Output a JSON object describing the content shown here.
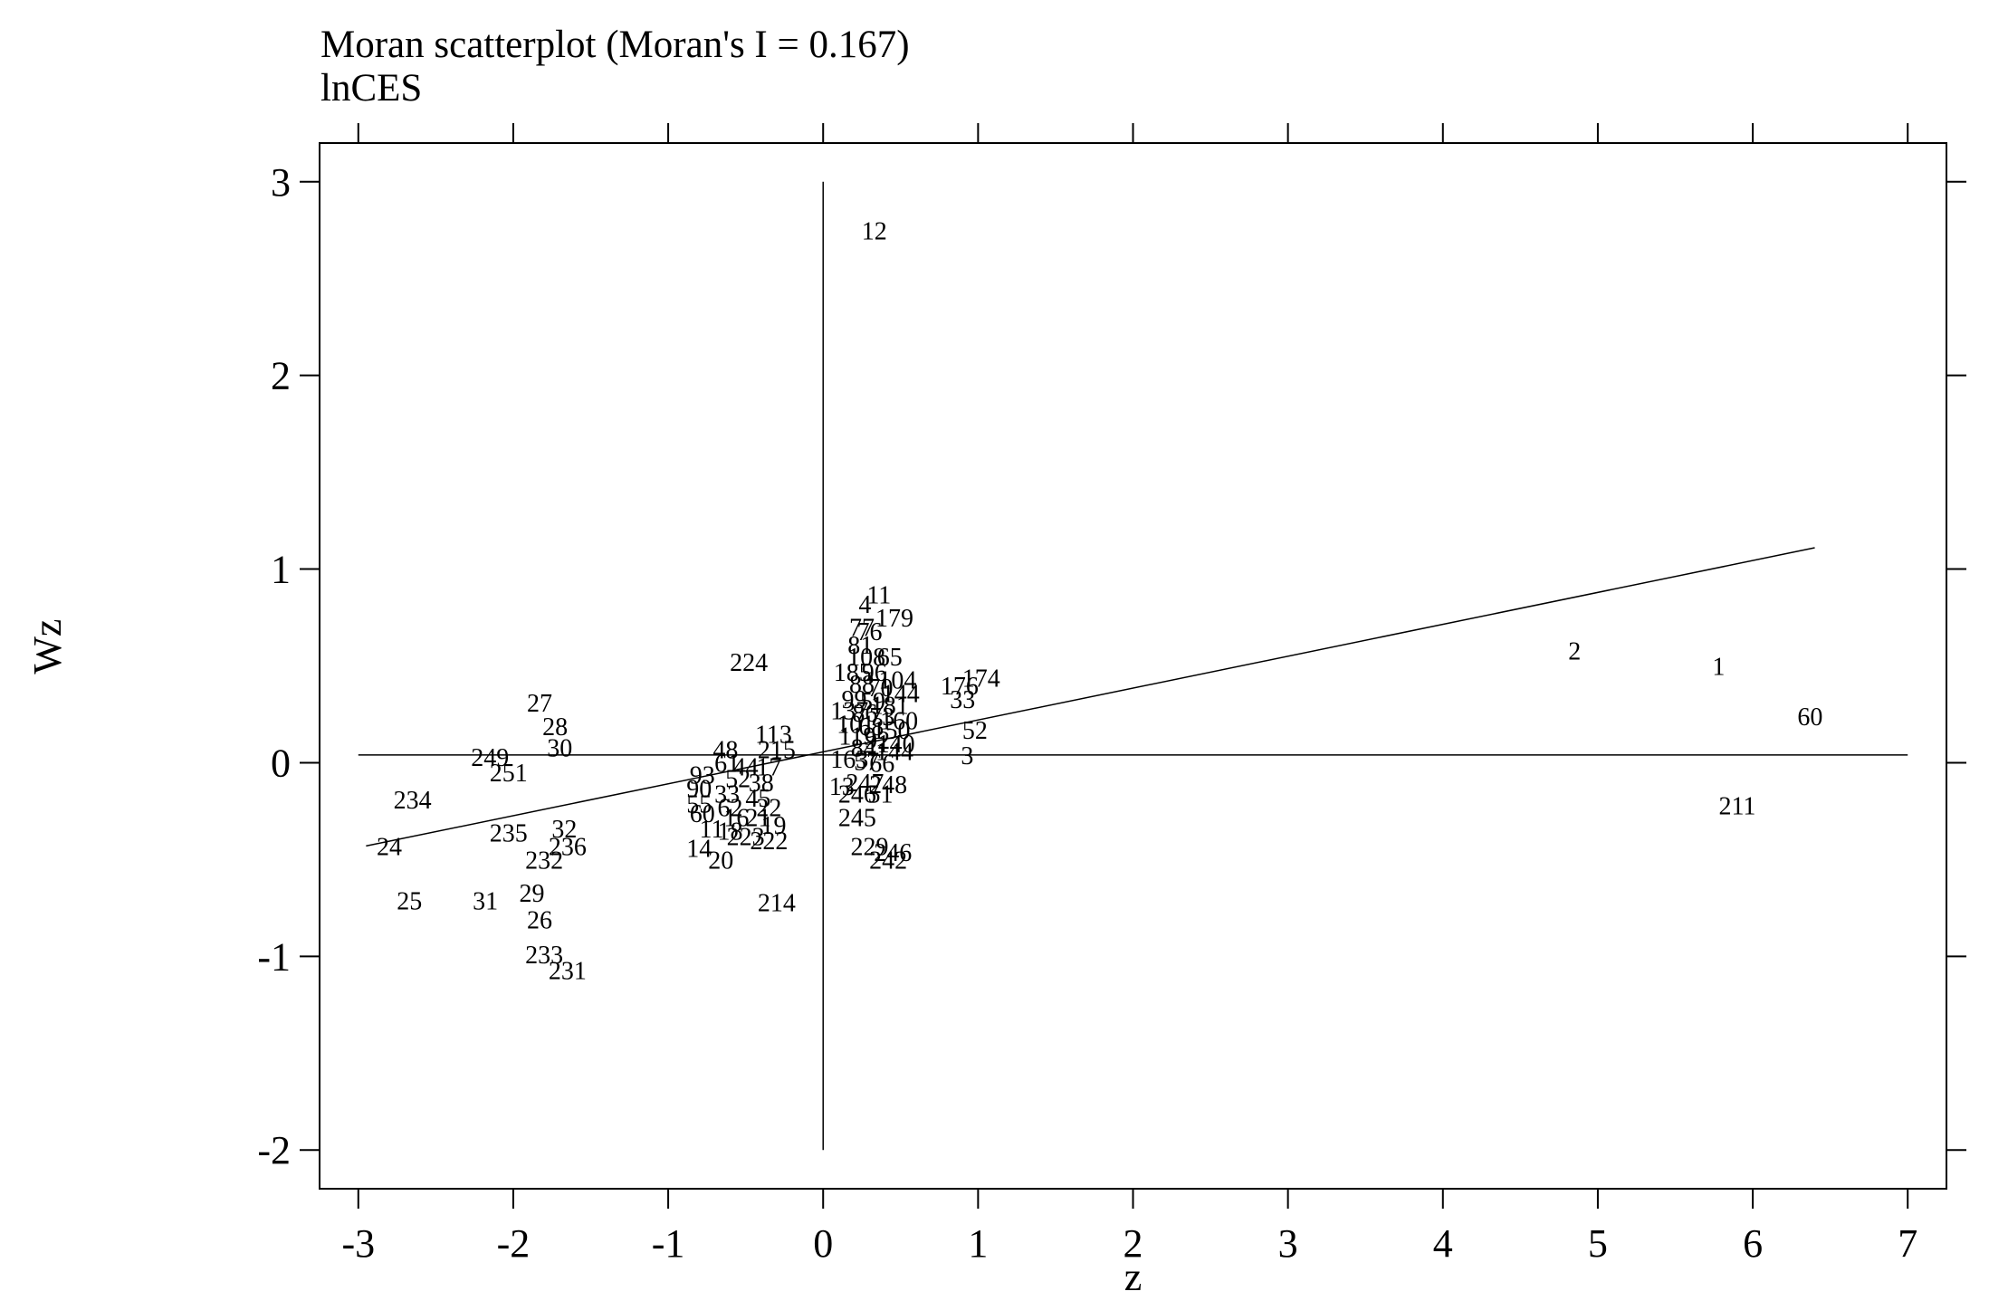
{
  "chart_data": {
    "type": "scatter",
    "title": "Moran scatterplot (Moran's I = 0.167)",
    "subtitle": "lnCES",
    "xlabel": "z",
    "ylabel": "Wz",
    "xlim": [
      -3.25,
      7.25
    ],
    "ylim": [
      -2.2,
      3.2
    ],
    "x_ticks": [
      -3,
      -2,
      -1,
      0,
      1,
      2,
      3,
      4,
      5,
      6,
      7
    ],
    "y_ticks": [
      -2,
      -1,
      0,
      1,
      2,
      3
    ],
    "grid": false,
    "reference_lines": {
      "vertical_x": 0,
      "horizontal_y": 0.04,
      "vertical_y_range": [
        -2,
        3
      ]
    },
    "regression_line": {
      "x": [
        -2.95,
        6.4
      ],
      "y": [
        -0.43,
        1.11
      ]
    },
    "points": [
      {
        "label": "12",
        "x": 0.33,
        "y": 2.75
      },
      {
        "label": "11",
        "x": 0.36,
        "y": 0.87
      },
      {
        "label": "4",
        "x": 0.27,
        "y": 0.82
      },
      {
        "label": "179",
        "x": 0.46,
        "y": 0.75
      },
      {
        "label": "77",
        "x": 0.25,
        "y": 0.7
      },
      {
        "label": "76",
        "x": 0.3,
        "y": 0.68
      },
      {
        "label": "81",
        "x": 0.24,
        "y": 0.61
      },
      {
        "label": "108",
        "x": 0.28,
        "y": 0.55
      },
      {
        "label": "65",
        "x": 0.43,
        "y": 0.55
      },
      {
        "label": "185",
        "x": 0.19,
        "y": 0.47
      },
      {
        "label": "96",
        "x": 0.33,
        "y": 0.47
      },
      {
        "label": "104",
        "x": 0.48,
        "y": 0.43
      },
      {
        "label": "88",
        "x": 0.25,
        "y": 0.41
      },
      {
        "label": "70",
        "x": 0.37,
        "y": 0.39
      },
      {
        "label": "144",
        "x": 0.5,
        "y": 0.36
      },
      {
        "label": "99",
        "x": 0.2,
        "y": 0.33
      },
      {
        "label": "59",
        "x": 0.32,
        "y": 0.32
      },
      {
        "label": "181",
        "x": 0.43,
        "y": 0.3
      },
      {
        "label": "137",
        "x": 0.17,
        "y": 0.27
      },
      {
        "label": "86",
        "x": 0.27,
        "y": 0.26
      },
      {
        "label": "73",
        "x": 0.38,
        "y": 0.24
      },
      {
        "label": "160",
        "x": 0.49,
        "y": 0.22
      },
      {
        "label": "101",
        "x": 0.21,
        "y": 0.2
      },
      {
        "label": "68",
        "x": 0.31,
        "y": 0.19
      },
      {
        "label": "150",
        "x": 0.44,
        "y": 0.17
      },
      {
        "label": "119",
        "x": 0.22,
        "y": 0.14
      },
      {
        "label": "92",
        "x": 0.35,
        "y": 0.12
      },
      {
        "label": "140",
        "x": 0.47,
        "y": 0.1
      },
      {
        "label": "84",
        "x": 0.26,
        "y": 0.08
      },
      {
        "label": "144",
        "x": 0.46,
        "y": 0.06
      },
      {
        "label": "163",
        "x": 0.17,
        "y": 0.02
      },
      {
        "label": "57",
        "x": 0.28,
        "y": 0.01
      },
      {
        "label": "66",
        "x": 0.38,
        "y": 0.0
      },
      {
        "label": "13",
        "x": 0.12,
        "y": -0.12
      },
      {
        "label": "247",
        "x": 0.27,
        "y": -0.1
      },
      {
        "label": "248",
        "x": 0.42,
        "y": -0.11
      },
      {
        "label": "246",
        "x": 0.22,
        "y": -0.16
      },
      {
        "label": "51",
        "x": 0.37,
        "y": -0.16
      },
      {
        "label": "245",
        "x": 0.22,
        "y": -0.28
      },
      {
        "label": "229",
        "x": 0.3,
        "y": -0.43
      },
      {
        "label": "246",
        "x": 0.45,
        "y": -0.46
      },
      {
        "label": "242",
        "x": 0.42,
        "y": -0.5
      },
      {
        "label": "174",
        "x": 1.02,
        "y": 0.44
      },
      {
        "label": "176",
        "x": 0.88,
        "y": 0.4
      },
      {
        "label": "33",
        "x": 0.9,
        "y": 0.33
      },
      {
        "label": "52",
        "x": 0.98,
        "y": 0.17
      },
      {
        "label": "3",
        "x": 0.93,
        "y": 0.04
      },
      {
        "label": "2",
        "x": 4.85,
        "y": 0.58
      },
      {
        "label": "1",
        "x": 5.78,
        "y": 0.5
      },
      {
        "label": "60",
        "x": 6.37,
        "y": 0.24
      },
      {
        "label": "211",
        "x": 5.9,
        "y": -0.22
      },
      {
        "label": "224",
        "x": -0.48,
        "y": 0.52
      },
      {
        "label": "113",
        "x": -0.32,
        "y": 0.15
      },
      {
        "label": "215",
        "x": -0.3,
        "y": 0.07
      },
      {
        "label": "48",
        "x": -0.63,
        "y": 0.07
      },
      {
        "label": "61",
        "x": -0.62,
        "y": 0.0
      },
      {
        "label": "44",
        "x": -0.5,
        "y": -0.02
      },
      {
        "label": "17",
        "x": -0.35,
        "y": -0.02
      },
      {
        "label": "93",
        "x": -0.78,
        "y": -0.06
      },
      {
        "label": "52",
        "x": -0.55,
        "y": -0.08
      },
      {
        "label": "38",
        "x": -0.4,
        "y": -0.1
      },
      {
        "label": "90",
        "x": -0.8,
        "y": -0.13
      },
      {
        "label": "33",
        "x": -0.62,
        "y": -0.16
      },
      {
        "label": "45",
        "x": -0.42,
        "y": -0.18
      },
      {
        "label": "55",
        "x": -0.8,
        "y": -0.21
      },
      {
        "label": "62",
        "x": -0.6,
        "y": -0.23
      },
      {
        "label": "22",
        "x": -0.35,
        "y": -0.23
      },
      {
        "label": "60",
        "x": -0.78,
        "y": -0.26
      },
      {
        "label": "16",
        "x": -0.56,
        "y": -0.28
      },
      {
        "label": "21",
        "x": -0.42,
        "y": -0.28
      },
      {
        "label": "11",
        "x": -0.72,
        "y": -0.34
      },
      {
        "label": "18",
        "x": -0.6,
        "y": -0.35
      },
      {
        "label": "19",
        "x": -0.32,
        "y": -0.32
      },
      {
        "label": "223",
        "x": -0.5,
        "y": -0.38
      },
      {
        "label": "222",
        "x": -0.35,
        "y": -0.4
      },
      {
        "label": "14",
        "x": -0.8,
        "y": -0.44
      },
      {
        "label": "20",
        "x": -0.66,
        "y": -0.5
      },
      {
        "label": "214",
        "x": -0.3,
        "y": -0.72
      },
      {
        "label": "27",
        "x": -1.83,
        "y": 0.31
      },
      {
        "label": "28",
        "x": -1.73,
        "y": 0.19
      },
      {
        "label": "30",
        "x": -1.7,
        "y": 0.08
      },
      {
        "label": "249",
        "x": -2.15,
        "y": 0.03
      },
      {
        "label": "251",
        "x": -2.03,
        "y": -0.05
      },
      {
        "label": "234",
        "x": -2.65,
        "y": -0.19
      },
      {
        "label": "24",
        "x": -2.8,
        "y": -0.43
      },
      {
        "label": "235",
        "x": -2.03,
        "y": -0.36
      },
      {
        "label": "32",
        "x": -1.67,
        "y": -0.34
      },
      {
        "label": "236",
        "x": -1.65,
        "y": -0.43
      },
      {
        "label": "232",
        "x": -1.8,
        "y": -0.5
      },
      {
        "label": "25",
        "x": -2.67,
        "y": -0.71
      },
      {
        "label": "31",
        "x": -2.18,
        "y": -0.71
      },
      {
        "label": "29",
        "x": -1.88,
        "y": -0.67
      },
      {
        "label": "26",
        "x": -1.83,
        "y": -0.81
      },
      {
        "label": "233",
        "x": -1.8,
        "y": -0.99
      },
      {
        "label": "231",
        "x": -1.65,
        "y": -1.07
      }
    ]
  }
}
